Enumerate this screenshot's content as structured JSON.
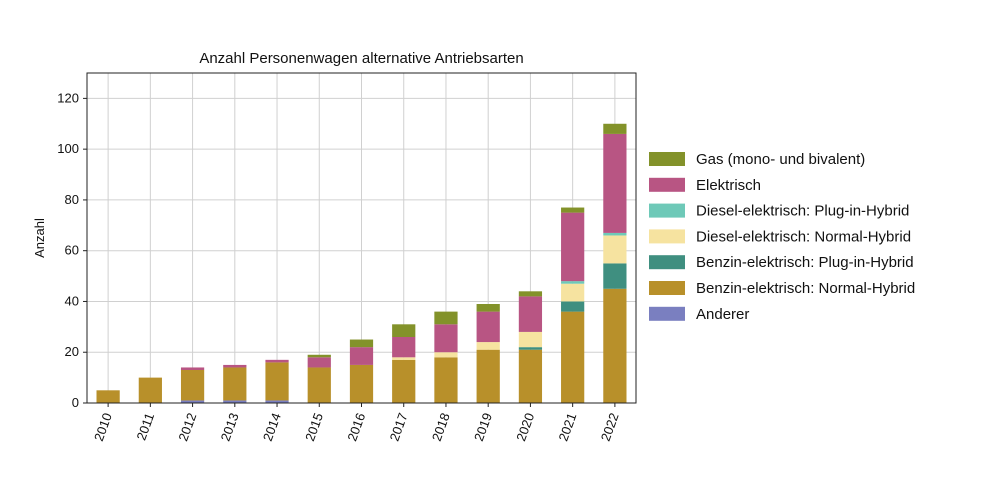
{
  "chart_data": {
    "type": "bar",
    "stacked": true,
    "title": "Anzahl Personenwagen alternative Antriebsarten",
    "xlabel": "",
    "ylabel": "Anzahl",
    "ylim": [
      0,
      130
    ],
    "yticks": [
      0,
      20,
      40,
      60,
      80,
      100,
      120
    ],
    "grid": true,
    "legend_position": "right",
    "categories": [
      "2010",
      "2011",
      "2012",
      "2013",
      "2014",
      "2015",
      "2016",
      "2017",
      "2018",
      "2019",
      "2020",
      "2021",
      "2022"
    ],
    "series": [
      {
        "name": "Anderer",
        "color": "#7a7fc0",
        "values": [
          0,
          0,
          1,
          1,
          1,
          0,
          0,
          0,
          0,
          0,
          0,
          0,
          0
        ]
      },
      {
        "name": "Benzin-elektrisch: Normal-Hybrid",
        "color": "#b8902a",
        "values": [
          5,
          10,
          12,
          13,
          15,
          14,
          15,
          17,
          18,
          21,
          21,
          36,
          45
        ]
      },
      {
        "name": "Benzin-elektrisch: Plug-in-Hybrid",
        "color": "#3f8f80",
        "values": [
          0,
          0,
          0,
          0,
          0,
          0,
          0,
          0,
          0,
          0,
          1,
          4,
          10
        ]
      },
      {
        "name": "Diesel-elektrisch: Normal-Hybrid",
        "color": "#f6e3a0",
        "values": [
          0,
          0,
          0,
          0,
          0,
          0,
          0,
          1,
          2,
          3,
          6,
          7,
          11
        ]
      },
      {
        "name": "Diesel-elektrisch: Plug-in-Hybrid",
        "color": "#6ec9b8",
        "values": [
          0,
          0,
          0,
          0,
          0,
          0,
          0,
          0,
          0,
          0,
          0,
          1,
          1
        ]
      },
      {
        "name": "Elektrisch",
        "color": "#b85583",
        "values": [
          0,
          0,
          1,
          1,
          1,
          4,
          7,
          8,
          11,
          12,
          14,
          27,
          39
        ]
      },
      {
        "name": "Gas (mono- und bivalent)",
        "color": "#83922a",
        "values": [
          0,
          0,
          0,
          0,
          0,
          1,
          3,
          5,
          5,
          3,
          2,
          2,
          4
        ]
      }
    ]
  }
}
